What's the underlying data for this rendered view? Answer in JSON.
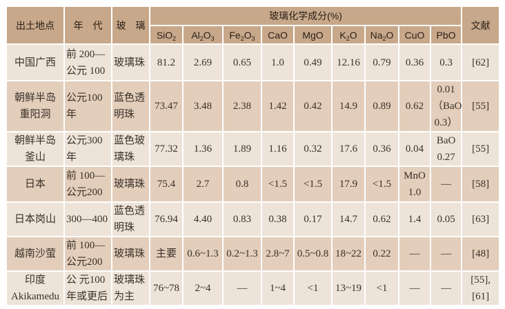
{
  "header": {
    "location": "出土地点",
    "era": "年　代",
    "glass": "玻　璃",
    "composition": "玻璃化学成分(%)",
    "reference": "文献",
    "oxides": [
      {
        "base": "SiO",
        "sub": "2",
        "tail": ""
      },
      {
        "base": "Al",
        "sub": "2",
        "tail": "O",
        "sub2": "3"
      },
      {
        "base": "Fe",
        "sub": "2",
        "tail": "O",
        "sub2": "3"
      },
      {
        "base": "CaO",
        "sub": "",
        "tail": ""
      },
      {
        "base": "MgO",
        "sub": "",
        "tail": ""
      },
      {
        "base": "K",
        "sub": "2",
        "tail": "O"
      },
      {
        "base": "Na",
        "sub": "2",
        "tail": "O"
      },
      {
        "base": "CuO",
        "sub": "",
        "tail": ""
      },
      {
        "base": "PbO",
        "sub": "",
        "tail": ""
      }
    ]
  },
  "rows": [
    {
      "location": [
        "中国广西"
      ],
      "era": [
        "前 200—",
        "公元 100"
      ],
      "glass": [
        "玻璃珠"
      ],
      "values": [
        "81.2",
        "2.69",
        "0.65",
        "1.0",
        "0.49",
        "12.16",
        "0.79",
        "0.36",
        [
          "0.3"
        ]
      ],
      "ref": [
        "[62]"
      ]
    },
    {
      "location": [
        "朝鲜半岛",
        "重阳洞"
      ],
      "era": [
        "公元100年"
      ],
      "glass": [
        "蓝色透",
        "明珠"
      ],
      "values": [
        "73.47",
        "3.48",
        "2.38",
        "1.42",
        "0.42",
        "14.9",
        "0.89",
        "0.62",
        [
          "0.01",
          "（BaO",
          "0.3）"
        ]
      ],
      "ref": [
        "[55]"
      ]
    },
    {
      "location": [
        "朝鲜半岛",
        "釜山"
      ],
      "era": [
        "公元300年"
      ],
      "glass": [
        "蓝色玻",
        "璃珠"
      ],
      "values": [
        "77.32",
        "1.36",
        "1.89",
        "1.16",
        "0.32",
        "17.6",
        "0.36",
        "0.04",
        [
          "BaO",
          "0.27"
        ]
      ],
      "ref": [
        "[55]"
      ]
    },
    {
      "location": [
        "日本"
      ],
      "era": [
        "前 100—",
        "公元200"
      ],
      "glass": [
        "玻璃珠"
      ],
      "values": [
        "75.4",
        "2.7",
        "0.8",
        "<1.5",
        "<1.5",
        "17.9",
        "<1.5",
        [
          "MnO",
          "1.0"
        ],
        [
          "—"
        ]
      ],
      "ref": [
        "[58]"
      ]
    },
    {
      "location": [
        "日本岗山"
      ],
      "era": [
        "300—400"
      ],
      "glass": [
        "蓝色透",
        "明珠"
      ],
      "values": [
        "76.94",
        "4.40",
        "0.83",
        "0.38",
        "0.17",
        "14.7",
        "0.62",
        "1.4",
        [
          "0.05"
        ]
      ],
      "ref": [
        "[63]"
      ]
    },
    {
      "location": [
        "越南沙萤"
      ],
      "era": [
        "前 100—",
        "公元200"
      ],
      "glass": [
        "玻璃珠"
      ],
      "values": [
        "主要",
        "0.6~1.3",
        "0.2~1.3",
        "2.8~7",
        "0.5~0.8",
        "18~22",
        "0.22",
        "—",
        [
          "—"
        ]
      ],
      "ref": [
        "[48]"
      ]
    },
    {
      "location": [
        "印度",
        "Akikamedu"
      ],
      "era": [
        "公 元100",
        "年或更后"
      ],
      "glass": [
        "玻璃珠",
        "为主"
      ],
      "values": [
        "76~78",
        "2~4",
        "—",
        "1~4",
        "<1",
        "13~19",
        "<1",
        "—",
        [
          "—"
        ]
      ],
      "ref": [
        "[55],",
        "[61]"
      ]
    }
  ],
  "colors": {
    "header": "#c8a88a",
    "row_light": "#ede3d8",
    "row_dark": "#e3cebb",
    "border": "#ffffff"
  }
}
